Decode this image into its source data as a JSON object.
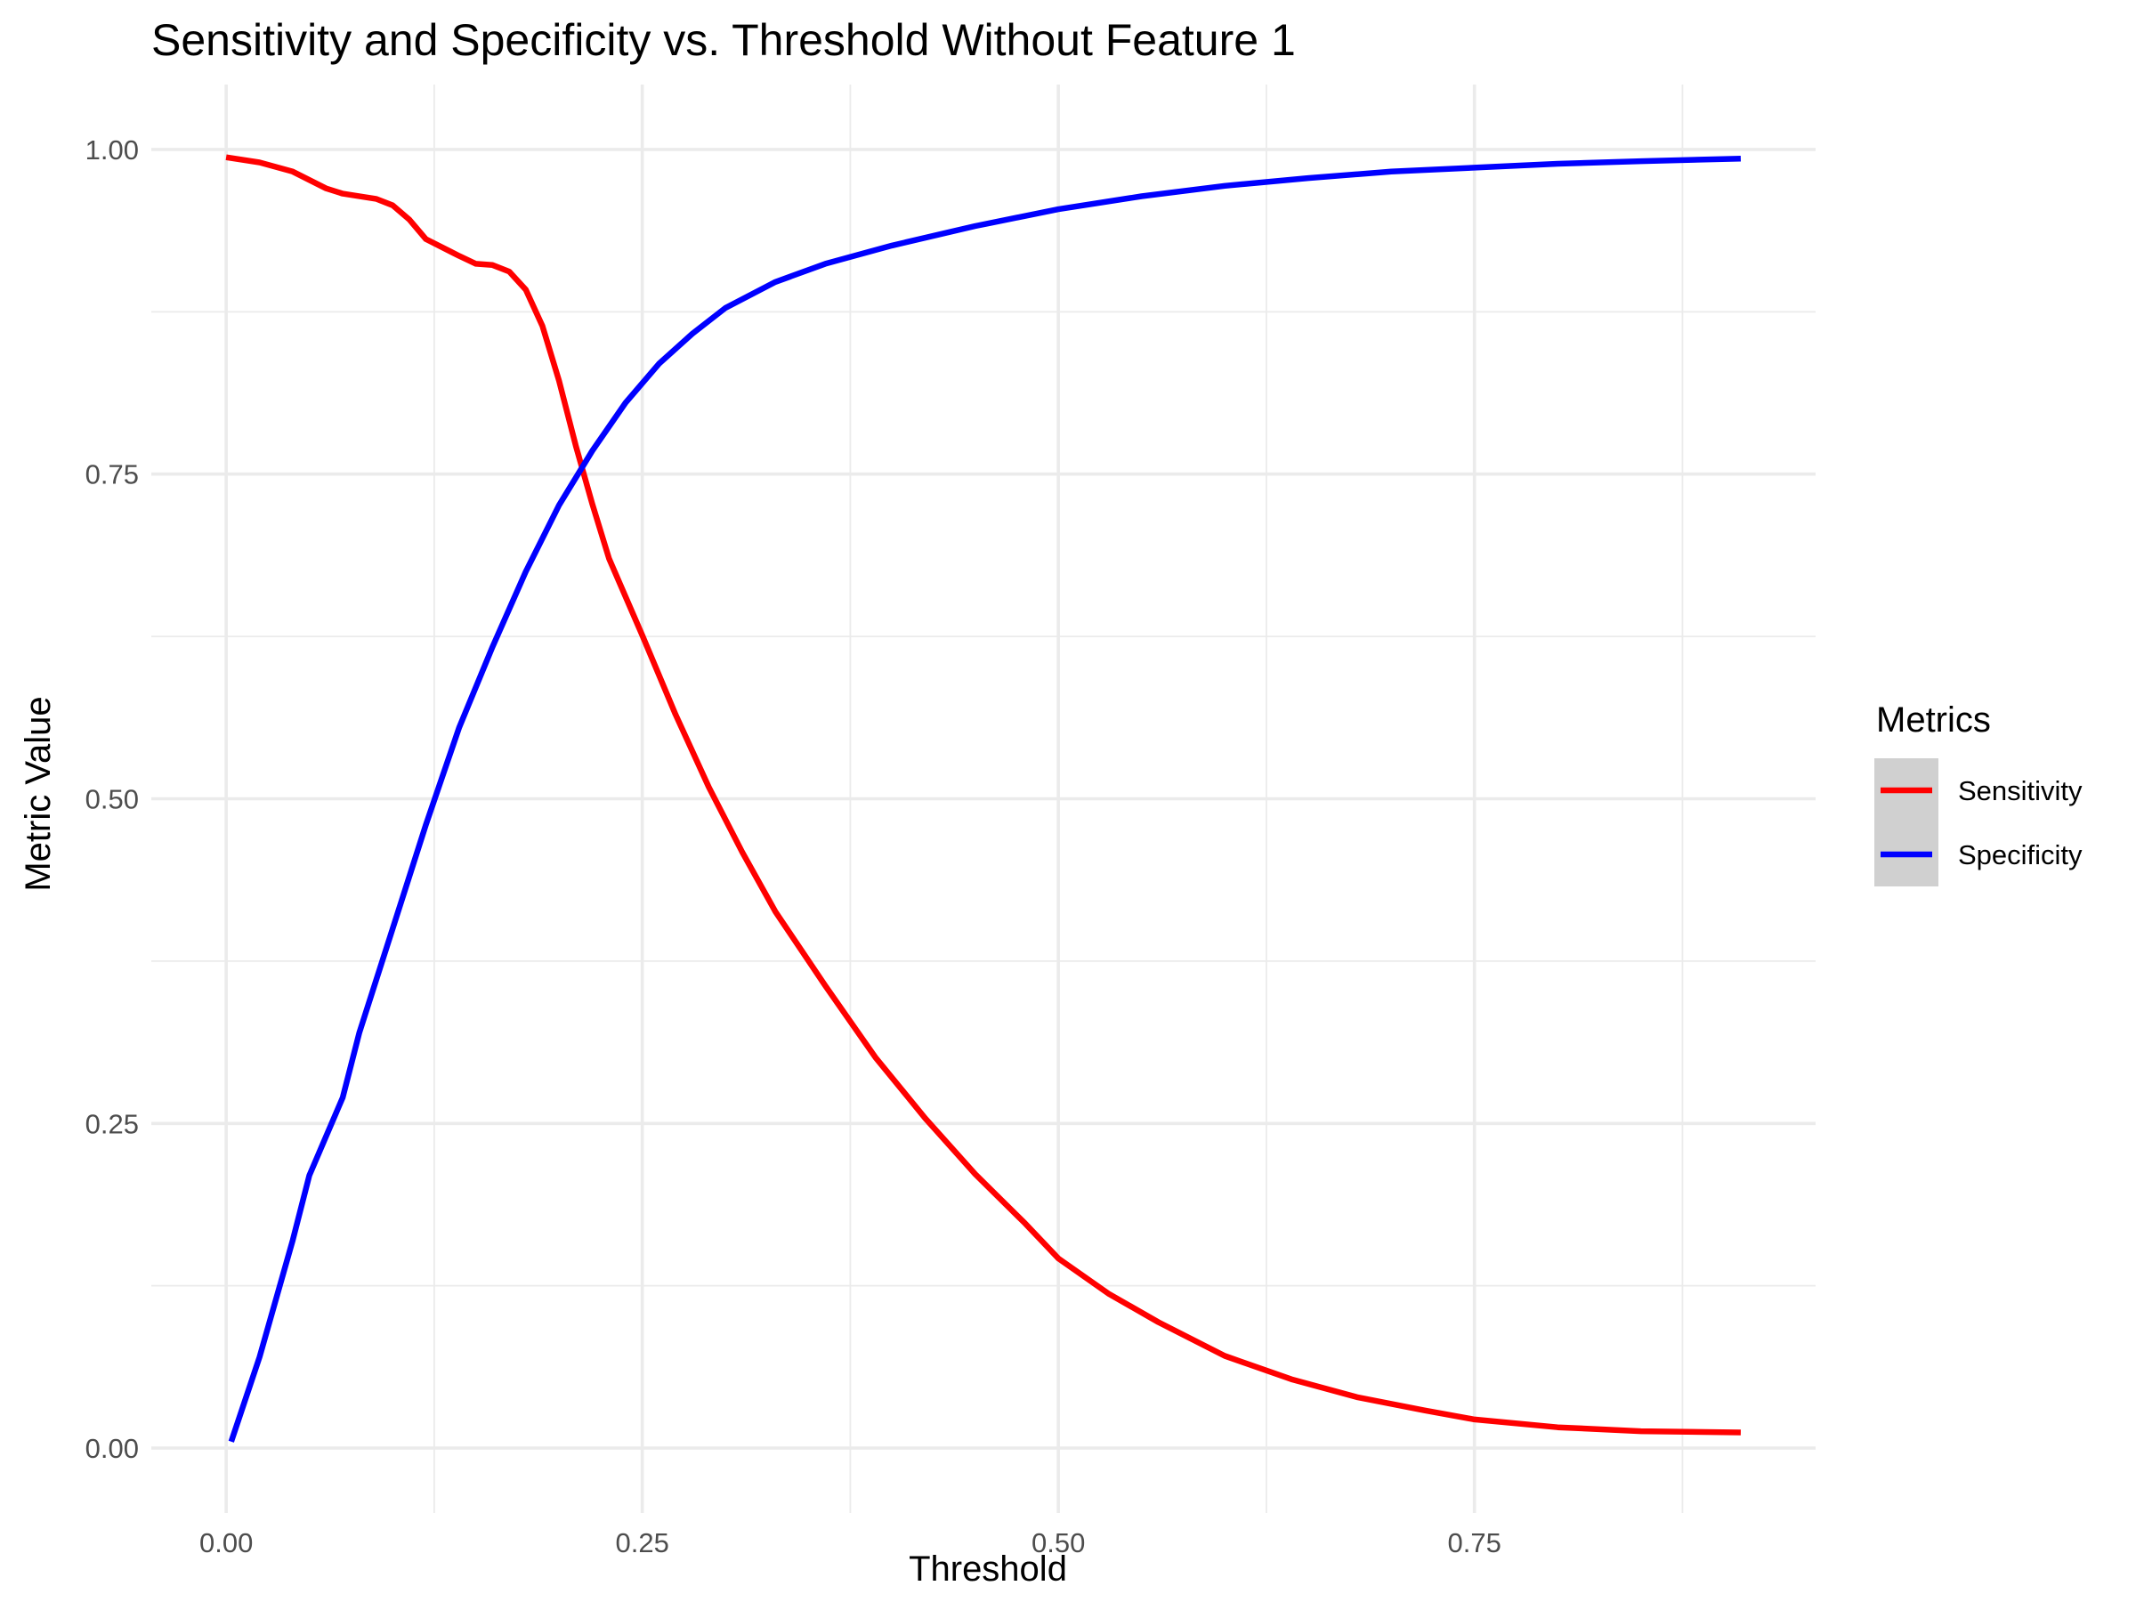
{
  "chart_data": {
    "type": "line",
    "title": "Sensitivity and Specificity vs. Threshold Without Feature 1",
    "xlabel": "Threshold",
    "ylabel": "Metric Value",
    "xlim": [
      -0.045,
      0.955
    ],
    "ylim": [
      -0.05,
      1.05
    ],
    "xticks": [
      "0.00",
      "0.25",
      "0.50",
      "0.75"
    ],
    "yticks": [
      "0.00",
      "0.25",
      "0.50",
      "0.75",
      "1.00"
    ],
    "grid": true,
    "legend": {
      "title": "Metrics",
      "position": "right"
    },
    "series": [
      {
        "name": "Sensitivity",
        "color": "#ff0000",
        "x": [
          0.0,
          0.02,
          0.04,
          0.06,
          0.07,
          0.09,
          0.1,
          0.11,
          0.12,
          0.14,
          0.15,
          0.16,
          0.17,
          0.18,
          0.19,
          0.2,
          0.21,
          0.22,
          0.23,
          0.25,
          0.27,
          0.29,
          0.31,
          0.33,
          0.36,
          0.39,
          0.42,
          0.45,
          0.48,
          0.5,
          0.53,
          0.56,
          0.6,
          0.64,
          0.68,
          0.72,
          0.75,
          0.8,
          0.85,
          0.91
        ],
        "y": [
          0.994,
          0.99,
          0.983,
          0.97,
          0.966,
          0.962,
          0.957,
          0.946,
          0.931,
          0.918,
          0.912,
          0.911,
          0.906,
          0.892,
          0.864,
          0.822,
          0.772,
          0.727,
          0.685,
          0.626,
          0.565,
          0.509,
          0.459,
          0.413,
          0.356,
          0.301,
          0.254,
          0.211,
          0.173,
          0.146,
          0.119,
          0.097,
          0.071,
          0.053,
          0.039,
          0.029,
          0.022,
          0.016,
          0.013,
          0.012
        ]
      },
      {
        "name": "Specificity",
        "color": "#0000ff",
        "x": [
          0.003,
          0.02,
          0.04,
          0.05,
          0.07,
          0.08,
          0.1,
          0.12,
          0.14,
          0.16,
          0.18,
          0.2,
          0.22,
          0.24,
          0.26,
          0.28,
          0.3,
          0.33,
          0.36,
          0.4,
          0.45,
          0.5,
          0.55,
          0.6,
          0.65,
          0.7,
          0.75,
          0.8,
          0.85,
          0.91
        ],
        "y": [
          0.005,
          0.07,
          0.16,
          0.21,
          0.27,
          0.32,
          0.4,
          0.48,
          0.555,
          0.617,
          0.675,
          0.726,
          0.768,
          0.805,
          0.835,
          0.858,
          0.878,
          0.898,
          0.912,
          0.926,
          0.941,
          0.954,
          0.964,
          0.972,
          0.978,
          0.983,
          0.986,
          0.989,
          0.991,
          0.993
        ]
      }
    ]
  }
}
